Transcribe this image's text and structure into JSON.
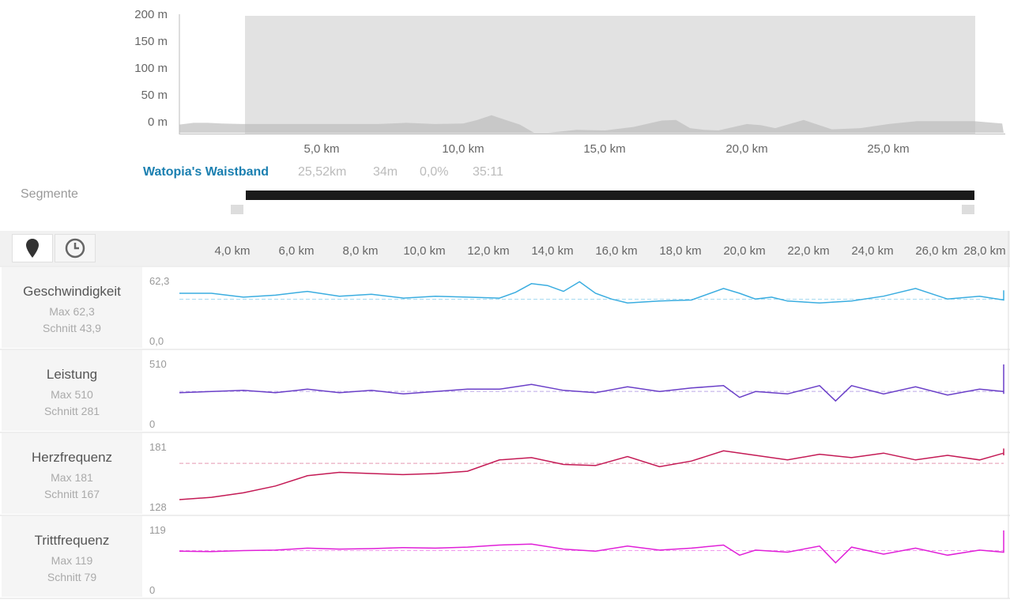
{
  "elevation": {
    "y_ticks": [
      "200 m",
      "150 m",
      "100 m",
      "50 m",
      "0 m"
    ],
    "x_ticks": [
      "5,0 km",
      "10,0 km",
      "15,0 km",
      "20,0 km",
      "25,0 km"
    ]
  },
  "segment": {
    "name": "Watopia's Waistband",
    "distance": "25,52km",
    "elevation": "34m",
    "grade": "0,0%",
    "time": "35:11"
  },
  "segments_label": "Segmente",
  "mode_buttons": {
    "distance_icon": "map-pin-icon",
    "time_icon": "clock-icon"
  },
  "distance_ticks": [
    "4,0 km",
    "6,0 km",
    "8,0 km",
    "10,0 km",
    "12,0 km",
    "14,0 km",
    "16,0 km",
    "18,0 km",
    "20,0 km",
    "22,0 km",
    "24,0 km",
    "26,0 km",
    "28,0 km"
  ],
  "panels": [
    {
      "title": "Geschwindigkeit",
      "max": "Max 62,3",
      "avg": "Schnitt 43,9",
      "top": "62,3",
      "bottom": "0,0",
      "color": "#3aade0"
    },
    {
      "title": "Leistung",
      "max": "Max 510",
      "avg": "Schnitt 281",
      "top": "510",
      "bottom": "0",
      "color": "#6a3fc8"
    },
    {
      "title": "Herzfrequenz",
      "max": "Max 181",
      "avg": "Schnitt 167",
      "top": "181",
      "bottom": "128",
      "color": "#c41a55"
    },
    {
      "title": "Trittfrequenz",
      "max": "Max 119",
      "avg": "Schnitt 79",
      "top": "119",
      "bottom": "0",
      "color": "#e020d8"
    }
  ],
  "chart_data": [
    {
      "type": "area",
      "ylim": [
        0,
        200
      ],
      "x": [
        0,
        0.5,
        1,
        1.5,
        2.2,
        3,
        4,
        5,
        6,
        7,
        8,
        9,
        10,
        10.5,
        11,
        11.5,
        12,
        12.5,
        13,
        14,
        15,
        16,
        17,
        17.5,
        18,
        18.5,
        19,
        20,
        20.5,
        21,
        22,
        23,
        24,
        25,
        26,
        27,
        28,
        29
      ],
      "values": [
        14,
        17,
        17,
        16,
        15,
        15,
        15,
        15,
        15,
        15,
        17,
        15,
        16,
        22,
        30,
        22,
        14,
        0,
        0,
        5,
        4,
        10,
        21,
        22,
        8,
        5,
        4,
        15,
        13,
        8,
        22,
        6,
        8,
        15,
        20,
        20,
        20,
        16
      ],
      "xlabel": "",
      "ylabel": ""
    },
    {
      "type": "line",
      "title": "Geschwindigkeit",
      "ylim": [
        0,
        62.3
      ],
      "average": 43.9,
      "x": [
        0,
        1,
        2,
        3,
        4,
        5,
        6,
        7,
        8,
        9,
        10,
        10.5,
        11,
        11.5,
        12,
        12.5,
        13,
        13.5,
        14,
        15,
        16,
        17,
        17.5,
        18,
        18.5,
        19,
        20,
        21,
        22,
        23,
        24,
        25,
        26,
        27,
        28,
        28.3
      ],
      "values": [
        50,
        50,
        46,
        48,
        52,
        47,
        49,
        45,
        47,
        46,
        45,
        51,
        60,
        58,
        52,
        62,
        50,
        44,
        40,
        42,
        43,
        55,
        50,
        44,
        46,
        42,
        40,
        42,
        47,
        55,
        44,
        47,
        43,
        46,
        44,
        53
      ]
    },
    {
      "type": "line",
      "title": "Leistung",
      "ylim": [
        0,
        510
      ],
      "average": 281,
      "x": [
        0,
        1,
        2,
        3,
        4,
        5,
        6,
        7,
        8,
        9,
        10,
        11,
        12,
        13,
        14,
        15,
        16,
        17,
        17.5,
        18,
        19,
        20,
        20.5,
        21,
        22,
        23,
        24,
        25,
        26,
        27,
        28,
        28.2,
        28.3
      ],
      "values": [
        270,
        280,
        290,
        270,
        300,
        270,
        290,
        260,
        280,
        300,
        300,
        340,
        290,
        270,
        320,
        280,
        310,
        330,
        230,
        280,
        260,
        330,
        200,
        330,
        260,
        320,
        250,
        300,
        280,
        300,
        260,
        510,
        360
      ]
    },
    {
      "type": "line",
      "title": "Herzfrequenz",
      "ylim": [
        128,
        181
      ],
      "average": 167,
      "x": [
        0,
        1,
        2,
        3,
        4,
        5,
        6,
        7,
        8,
        9,
        10,
        11,
        12,
        13,
        14,
        15,
        16,
        17,
        18,
        19,
        20,
        21,
        22,
        23,
        24,
        25,
        26,
        27,
        28,
        28.3
      ],
      "values": [
        135,
        137,
        141,
        147,
        156,
        159,
        158,
        157,
        158,
        160,
        170,
        172,
        166,
        165,
        173,
        164,
        169,
        178,
        174,
        170,
        175,
        172,
        176,
        170,
        174,
        170,
        176,
        175,
        174,
        180
      ]
    },
    {
      "type": "line",
      "title": "Trittfrequenz",
      "ylim": [
        0,
        119
      ],
      "average": 79,
      "x": [
        0,
        1,
        2,
        3,
        4,
        5,
        6,
        7,
        8,
        9,
        10,
        11,
        12,
        13,
        14,
        15,
        16,
        17,
        17.5,
        18,
        19,
        20,
        20.5,
        21,
        22,
        23,
        24,
        25,
        26,
        27,
        28,
        28.2,
        28.3
      ],
      "values": [
        78,
        77,
        79,
        80,
        84,
        82,
        83,
        85,
        84,
        86,
        90,
        92,
        82,
        78,
        88,
        80,
        84,
        90,
        70,
        80,
        76,
        88,
        55,
        86,
        72,
        84,
        70,
        80,
        76,
        82,
        75,
        119,
        100
      ]
    }
  ]
}
